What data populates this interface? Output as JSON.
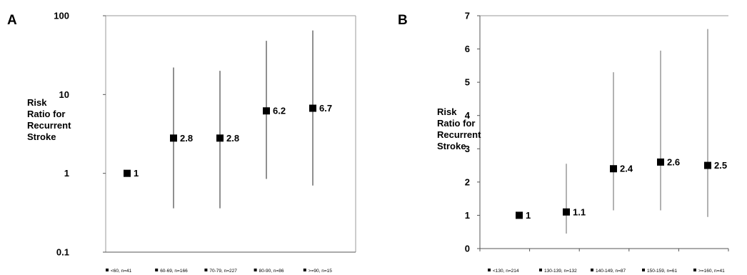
{
  "chart_data": [
    {
      "panel": "A",
      "type": "scatter",
      "yscale": "log",
      "ylim": [
        0.1,
        100
      ],
      "ylabel": [
        "Risk",
        "Ratio for",
        "Recurrent",
        "Stroke"
      ],
      "yticks": [
        "0.1",
        "1",
        "10",
        "100"
      ],
      "grid": false,
      "legend_position": "bottom",
      "series": [
        {
          "name": "<60, n=41",
          "value": 1,
          "label": "1",
          "ci": null
        },
        {
          "name": "60-69, n=166",
          "value": 2.8,
          "label": "2.8",
          "ci": [
            0.36,
            22
          ]
        },
        {
          "name": "70-79, n=227",
          "value": 2.8,
          "label": "2.8",
          "ci": [
            0.36,
            20
          ]
        },
        {
          "name": "80-90, n=86",
          "value": 6.2,
          "label": "6.2",
          "ci": [
            0.85,
            48
          ]
        },
        {
          "name": ">=90, n=15",
          "value": 6.7,
          "label": "6.7",
          "ci": [
            0.7,
            65
          ]
        }
      ]
    },
    {
      "panel": "B",
      "type": "scatter",
      "yscale": "linear",
      "ylim": [
        0,
        7
      ],
      "ylabel": [
        "Risk",
        "Ratio for",
        "Recurrent",
        "Stroke"
      ],
      "yticks": [
        "0",
        "1",
        "2",
        "3",
        "4",
        "5",
        "6",
        "7"
      ],
      "grid": false,
      "legend_position": "bottom",
      "series": [
        {
          "name": "<130, n=214",
          "value": 1,
          "label": "1",
          "ci": null
        },
        {
          "name": "130-139, n=132",
          "value": 1.1,
          "label": "1.1",
          "ci": [
            0.45,
            2.55
          ]
        },
        {
          "name": "140-149, n=87",
          "value": 2.4,
          "label": "2.4",
          "ci": [
            1.15,
            5.3
          ]
        },
        {
          "name": "150-159, n=61",
          "value": 2.6,
          "label": "2.6",
          "ci": [
            1.15,
            5.95
          ]
        },
        {
          "name": ">=160, n=41",
          "value": 2.5,
          "label": "2.5",
          "ci": [
            0.95,
            6.6
          ]
        }
      ]
    }
  ]
}
